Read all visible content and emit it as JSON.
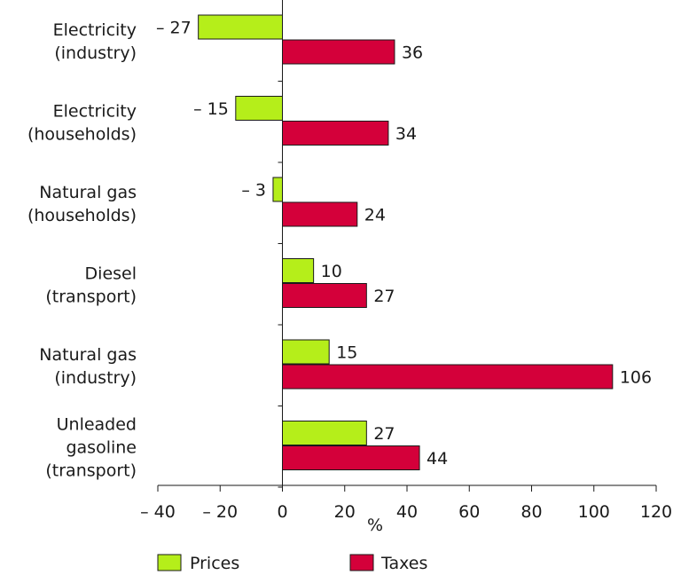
{
  "chart_data": {
    "type": "bar",
    "orientation": "horizontal",
    "categories": [
      [
        "Electricity",
        "(industry)"
      ],
      [
        "Electricity",
        "(households)"
      ],
      [
        "Natural gas",
        "(households)"
      ],
      [
        "Diesel",
        "(transport)"
      ],
      [
        "Natural gas",
        "(industry)"
      ],
      [
        "Unleaded",
        "gasoline",
        "(transport)"
      ]
    ],
    "series": [
      {
        "name": "Prices",
        "color": "#b5ee1a",
        "values": [
          -27,
          -15,
          -3,
          10,
          15,
          27
        ],
        "labels": [
          "– 27",
          "– 15",
          "– 3",
          "10",
          "15",
          "27"
        ]
      },
      {
        "name": "Taxes",
        "color": "#d4003a",
        "values": [
          36,
          34,
          24,
          27,
          106,
          44
        ],
        "labels": [
          "36",
          "34",
          "24",
          "27",
          "106",
          "44"
        ]
      }
    ],
    "xlabel": "%",
    "xlim": [
      -40,
      120
    ],
    "xticks": [
      -40,
      -20,
      0,
      20,
      40,
      60,
      80,
      100,
      120
    ],
    "xtick_labels": [
      "– 40",
      "– 20",
      "0",
      "20",
      "40",
      "60",
      "80",
      "100",
      "120"
    ],
    "grid": false,
    "legend_position": "bottom"
  }
}
